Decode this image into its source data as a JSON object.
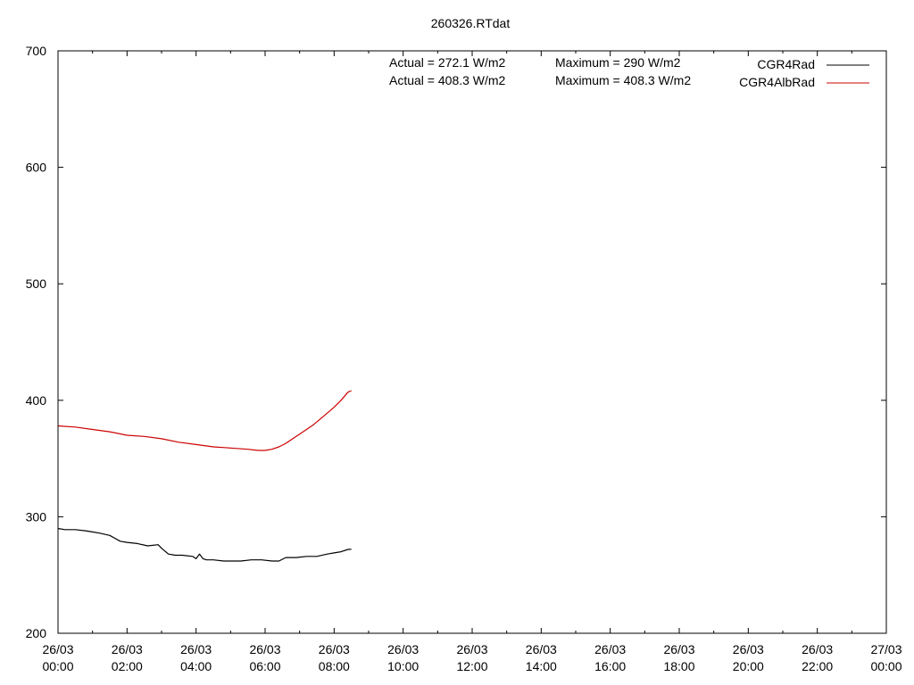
{
  "chart_data": {
    "type": "line",
    "title": "260326.RTdat",
    "xlabel": "",
    "ylabel": "",
    "ylim": [
      200,
      700
    ],
    "xlim_hours": [
      0,
      24
    ],
    "y_ticks": [
      200,
      300,
      400,
      500,
      600,
      700
    ],
    "x_ticks": [
      {
        "hour": 0,
        "date": "26/03",
        "time": "00:00"
      },
      {
        "hour": 2,
        "date": "26/03",
        "time": "02:00"
      },
      {
        "hour": 4,
        "date": "26/03",
        "time": "04:00"
      },
      {
        "hour": 6,
        "date": "26/03",
        "time": "06:00"
      },
      {
        "hour": 8,
        "date": "26/03",
        "time": "08:00"
      },
      {
        "hour": 10,
        "date": "26/03",
        "time": "10:00"
      },
      {
        "hour": 12,
        "date": "26/03",
        "time": "12:00"
      },
      {
        "hour": 14,
        "date": "26/03",
        "time": "14:00"
      },
      {
        "hour": 16,
        "date": "26/03",
        "time": "16:00"
      },
      {
        "hour": 18,
        "date": "26/03",
        "time": "18:00"
      },
      {
        "hour": 20,
        "date": "26/03",
        "time": "20:00"
      },
      {
        "hour": 22,
        "date": "26/03",
        "time": "22:00"
      },
      {
        "hour": 24,
        "date": "27/03",
        "time": "00:00"
      }
    ],
    "grid": false,
    "legend_position": "top-right",
    "annotations": [
      {
        "actual": "Actual = 272.1 W/m2",
        "maximum": "Maximum = 290 W/m2"
      },
      {
        "actual": "Actual = 408.3 W/m2",
        "maximum": "Maximum = 408.3 W/m2"
      }
    ],
    "series": [
      {
        "name": "CGR4Rad",
        "color": "#000000",
        "x": [
          0,
          0.2,
          0.5,
          0.8,
          1.0,
          1.2,
          1.5,
          1.8,
          2.0,
          2.3,
          2.6,
          2.9,
          3.0,
          3.2,
          3.4,
          3.6,
          3.9,
          4.0,
          4.1,
          4.2,
          4.3,
          4.5,
          4.8,
          5.0,
          5.3,
          5.6,
          5.9,
          6.2,
          6.4,
          6.6,
          6.9,
          7.2,
          7.5,
          7.8,
          8.0,
          8.2,
          8.4,
          8.5
        ],
        "y": [
          290,
          289,
          289,
          288,
          287,
          286,
          284,
          279,
          278,
          277,
          275,
          276,
          273,
          268,
          267,
          267,
          266,
          264,
          268,
          264,
          263,
          263,
          262,
          262,
          262,
          263,
          263,
          262,
          262,
          265,
          265,
          266,
          266,
          268,
          269,
          270,
          272,
          272.1
        ]
      },
      {
        "name": "CGR4AlbRad",
        "color": "#cc0000",
        "x": [
          0,
          0.5,
          1.0,
          1.5,
          2.0,
          2.5,
          3.0,
          3.5,
          4.0,
          4.5,
          5.0,
          5.5,
          5.8,
          6.0,
          6.2,
          6.4,
          6.6,
          6.8,
          7.0,
          7.2,
          7.4,
          7.6,
          7.8,
          8.0,
          8.2,
          8.4,
          8.5
        ],
        "y": [
          378,
          377,
          375,
          373,
          370,
          369,
          367,
          364,
          362,
          360,
          359,
          358,
          357,
          357,
          358,
          360,
          363,
          367,
          371,
          375,
          379,
          384,
          389,
          394,
          400,
          407,
          408.3
        ]
      }
    ]
  }
}
